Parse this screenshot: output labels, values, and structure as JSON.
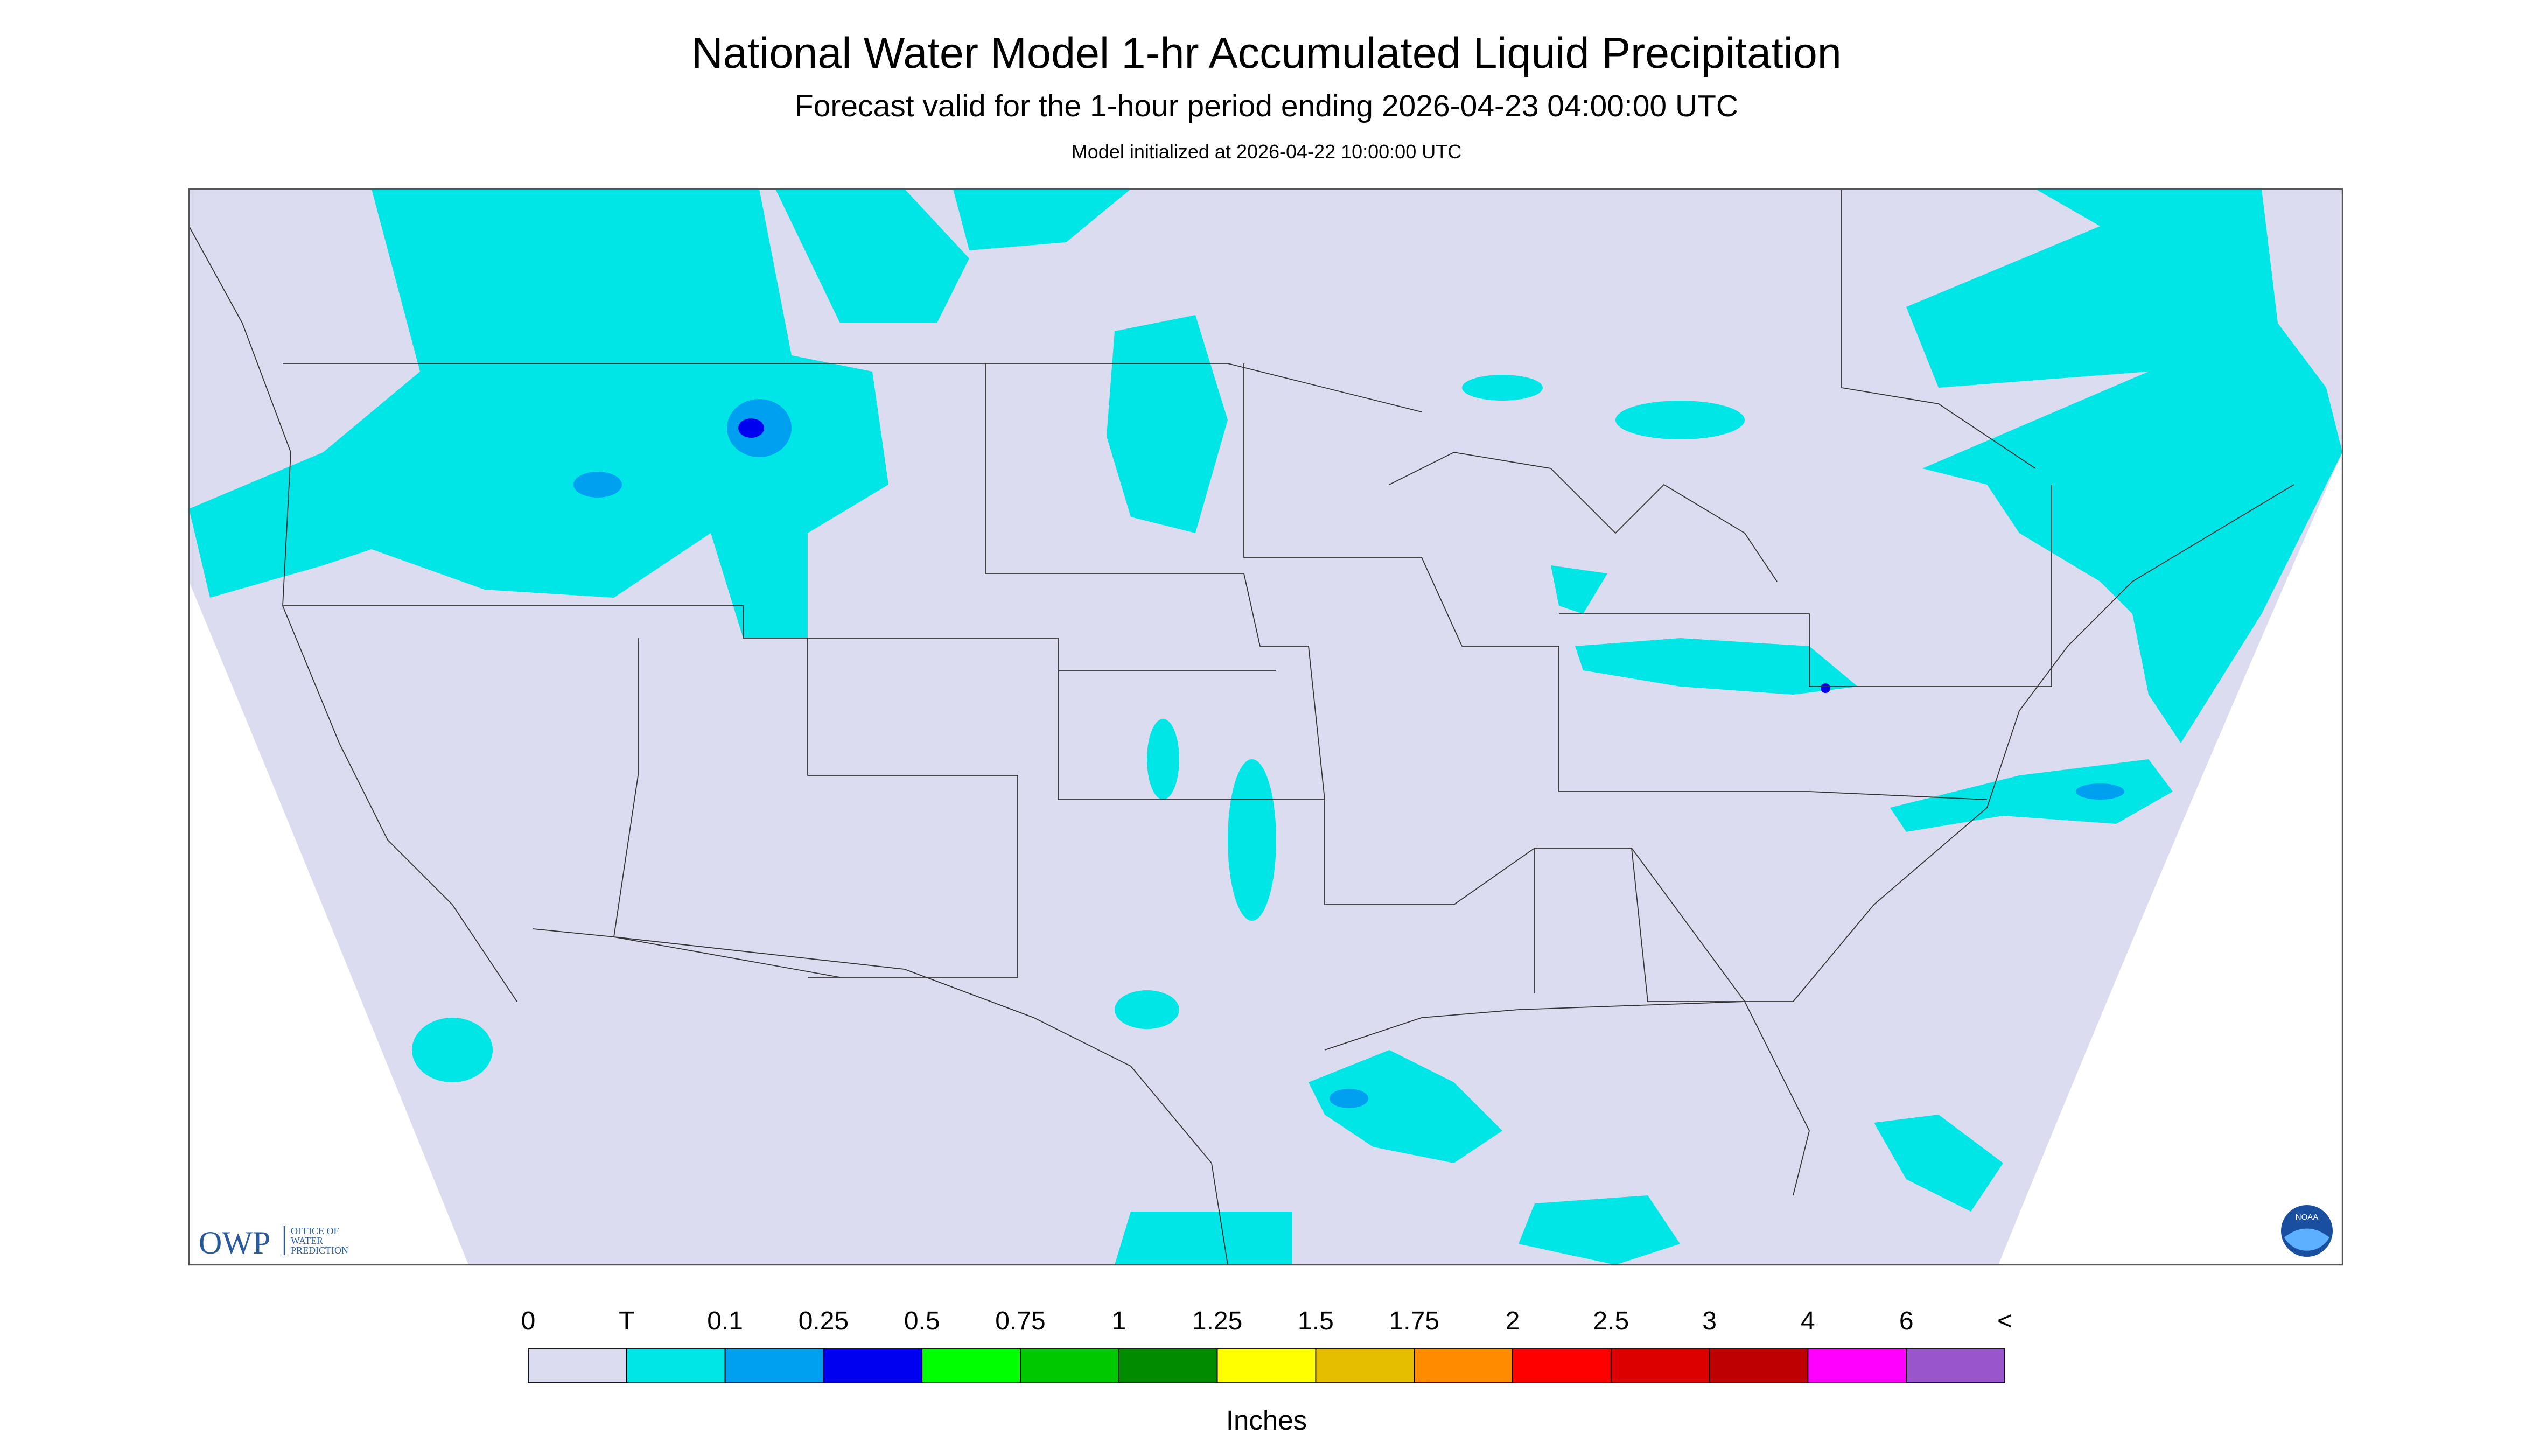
{
  "header": {
    "title": "National Water Model 1-hr Accumulated Liquid Precipitation",
    "subtitle": "Forecast valid for the 1-hour period ending 2026-04-23 04:00:00 UTC",
    "init": "Model initialized at 2026-04-22 10:00:00 UTC"
  },
  "legend": {
    "labels": [
      "0",
      "T",
      "0.1",
      "0.25",
      "0.5",
      "0.75",
      "1",
      "1.25",
      "1.5",
      "1.75",
      "2",
      "2.5",
      "3",
      "4",
      "6",
      "<"
    ],
    "colors": [
      "#dcdcf0",
      "#00e6e6",
      "#00a0f0",
      "#0000f0",
      "#00ff00",
      "#00c800",
      "#008c00",
      "#ffff00",
      "#e6be00",
      "#ff8c00",
      "#ff0000",
      "#dc0000",
      "#be0000",
      "#ff00ff",
      "#9955cc"
    ],
    "unit": "Inches"
  },
  "logos": {
    "owp": "OWP",
    "owp_lines": [
      "OFFICE OF",
      "WATER",
      "PREDICTION"
    ],
    "noaa": "NOAA"
  }
}
